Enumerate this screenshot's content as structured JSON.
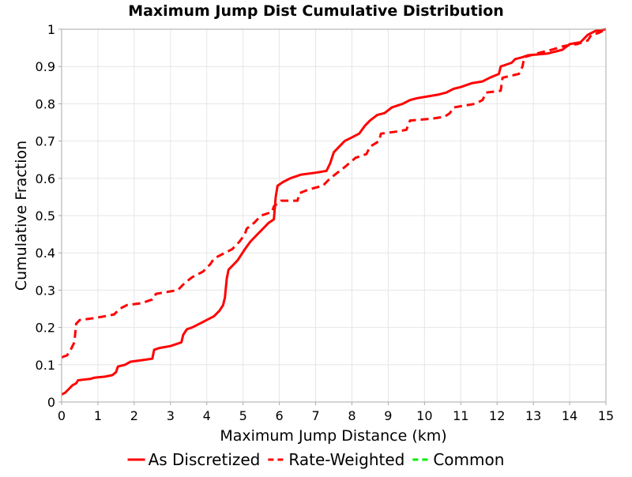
{
  "chart_data": {
    "type": "line",
    "title": "Maximum Jump Dist Cumulative Distribution",
    "xlabel": "Maximum Jump Distance (km)",
    "ylabel": "Cumulative Fraction",
    "xlim": [
      0,
      15
    ],
    "ylim": [
      0,
      1
    ],
    "x_ticks": [
      0,
      1,
      2,
      3,
      4,
      5,
      6,
      7,
      8,
      9,
      10,
      11,
      12,
      13,
      14,
      15
    ],
    "y_ticks": [
      0,
      0.1,
      0.2,
      0.3,
      0.4,
      0.5,
      0.6,
      0.7,
      0.8,
      0.9,
      1
    ],
    "x_tick_labels": [
      "0",
      "1",
      "2",
      "3",
      "4",
      "5",
      "6",
      "7",
      "8",
      "9",
      "10",
      "11",
      "12",
      "13",
      "14",
      "15"
    ],
    "y_tick_labels": [
      "0",
      "0.1",
      "0.2",
      "0.3",
      "0.4",
      "0.5",
      "0.6",
      "0.7",
      "0.8",
      "0.9",
      "1"
    ],
    "grid": true,
    "legend_position": "bottom",
    "series": [
      {
        "name": "As Discretized",
        "color": "#ff0000",
        "dash": "solid",
        "points": [
          [
            0,
            0.02
          ],
          [
            0.1,
            0.025
          ],
          [
            0.2,
            0.035
          ],
          [
            0.3,
            0.045
          ],
          [
            0.4,
            0.05
          ],
          [
            0.45,
            0.058
          ],
          [
            0.6,
            0.06
          ],
          [
            0.8,
            0.062
          ],
          [
            0.9,
            0.065
          ],
          [
            1.2,
            0.068
          ],
          [
            1.4,
            0.072
          ],
          [
            1.5,
            0.08
          ],
          [
            1.55,
            0.095
          ],
          [
            1.75,
            0.1
          ],
          [
            1.9,
            0.108
          ],
          [
            2.2,
            0.112
          ],
          [
            2.5,
            0.116
          ],
          [
            2.55,
            0.14
          ],
          [
            2.7,
            0.145
          ],
          [
            3.0,
            0.15
          ],
          [
            3.3,
            0.16
          ],
          [
            3.35,
            0.18
          ],
          [
            3.45,
            0.195
          ],
          [
            3.6,
            0.2
          ],
          [
            3.8,
            0.21
          ],
          [
            4.0,
            0.22
          ],
          [
            4.2,
            0.23
          ],
          [
            4.35,
            0.245
          ],
          [
            4.45,
            0.26
          ],
          [
            4.5,
            0.28
          ],
          [
            4.55,
            0.33
          ],
          [
            4.6,
            0.355
          ],
          [
            4.75,
            0.37
          ],
          [
            4.85,
            0.38
          ],
          [
            4.95,
            0.395
          ],
          [
            5.05,
            0.41
          ],
          [
            5.2,
            0.43
          ],
          [
            5.4,
            0.45
          ],
          [
            5.5,
            0.46
          ],
          [
            5.6,
            0.47
          ],
          [
            5.7,
            0.48
          ],
          [
            5.85,
            0.49
          ],
          [
            5.9,
            0.55
          ],
          [
            5.95,
            0.58
          ],
          [
            6.1,
            0.59
          ],
          [
            6.3,
            0.6
          ],
          [
            6.6,
            0.61
          ],
          [
            7.0,
            0.615
          ],
          [
            7.3,
            0.62
          ],
          [
            7.4,
            0.64
          ],
          [
            7.5,
            0.67
          ],
          [
            7.65,
            0.685
          ],
          [
            7.8,
            0.7
          ],
          [
            8.0,
            0.71
          ],
          [
            8.2,
            0.72
          ],
          [
            8.35,
            0.74
          ],
          [
            8.5,
            0.755
          ],
          [
            8.7,
            0.77
          ],
          [
            8.9,
            0.775
          ],
          [
            9.1,
            0.79
          ],
          [
            9.4,
            0.8
          ],
          [
            9.6,
            0.81
          ],
          [
            9.8,
            0.815
          ],
          [
            10.1,
            0.82
          ],
          [
            10.4,
            0.825
          ],
          [
            10.6,
            0.83
          ],
          [
            10.8,
            0.84
          ],
          [
            11.0,
            0.845
          ],
          [
            11.3,
            0.855
          ],
          [
            11.6,
            0.86
          ],
          [
            11.8,
            0.87
          ],
          [
            12.05,
            0.88
          ],
          [
            12.1,
            0.9
          ],
          [
            12.4,
            0.91
          ],
          [
            12.5,
            0.92
          ],
          [
            12.7,
            0.925
          ],
          [
            12.85,
            0.93
          ],
          [
            13.4,
            0.935
          ],
          [
            13.8,
            0.945
          ],
          [
            14.0,
            0.96
          ],
          [
            14.3,
            0.965
          ],
          [
            14.5,
            0.985
          ],
          [
            14.7,
            0.995
          ],
          [
            15.0,
            1.0
          ]
        ]
      },
      {
        "name": "Rate-Weighted",
        "color": "#ff0000",
        "dash": "dashed",
        "points": [
          [
            0,
            0.12
          ],
          [
            0.15,
            0.125
          ],
          [
            0.25,
            0.14
          ],
          [
            0.35,
            0.16
          ],
          [
            0.4,
            0.21
          ],
          [
            0.5,
            0.22
          ],
          [
            0.9,
            0.225
          ],
          [
            1.2,
            0.23
          ],
          [
            1.45,
            0.235
          ],
          [
            1.6,
            0.25
          ],
          [
            1.8,
            0.26
          ],
          [
            2.2,
            0.265
          ],
          [
            2.5,
            0.275
          ],
          [
            2.6,
            0.29
          ],
          [
            3.2,
            0.3
          ],
          [
            3.4,
            0.32
          ],
          [
            3.6,
            0.335
          ],
          [
            3.9,
            0.35
          ],
          [
            4.1,
            0.37
          ],
          [
            4.2,
            0.385
          ],
          [
            4.5,
            0.4
          ],
          [
            4.7,
            0.41
          ],
          [
            4.9,
            0.43
          ],
          [
            5.05,
            0.45
          ],
          [
            5.1,
            0.465
          ],
          [
            5.3,
            0.48
          ],
          [
            5.5,
            0.5
          ],
          [
            5.8,
            0.51
          ],
          [
            5.85,
            0.525
          ],
          [
            6.05,
            0.54
          ],
          [
            6.5,
            0.54
          ],
          [
            6.55,
            0.56
          ],
          [
            6.8,
            0.57
          ],
          [
            7.2,
            0.58
          ],
          [
            7.4,
            0.6
          ],
          [
            7.6,
            0.615
          ],
          [
            7.8,
            0.63
          ],
          [
            8.1,
            0.655
          ],
          [
            8.4,
            0.665
          ],
          [
            8.5,
            0.685
          ],
          [
            8.75,
            0.7
          ],
          [
            8.8,
            0.72
          ],
          [
            9.2,
            0.725
          ],
          [
            9.5,
            0.73
          ],
          [
            9.6,
            0.755
          ],
          [
            10.2,
            0.76
          ],
          [
            10.55,
            0.765
          ],
          [
            10.7,
            0.775
          ],
          [
            10.8,
            0.79
          ],
          [
            11.4,
            0.8
          ],
          [
            11.6,
            0.81
          ],
          [
            11.7,
            0.83
          ],
          [
            12.1,
            0.835
          ],
          [
            12.15,
            0.87
          ],
          [
            12.6,
            0.88
          ],
          [
            12.7,
            0.9
          ],
          [
            12.75,
            0.925
          ],
          [
            13.1,
            0.935
          ],
          [
            13.5,
            0.945
          ],
          [
            13.85,
            0.955
          ],
          [
            14.2,
            0.96
          ],
          [
            14.5,
            0.97
          ],
          [
            14.6,
            0.985
          ],
          [
            14.8,
            0.99
          ],
          [
            15.0,
            1.0
          ]
        ]
      },
      {
        "name": "Common",
        "color": "#00ee00",
        "dash": "dashed",
        "points": []
      }
    ]
  }
}
